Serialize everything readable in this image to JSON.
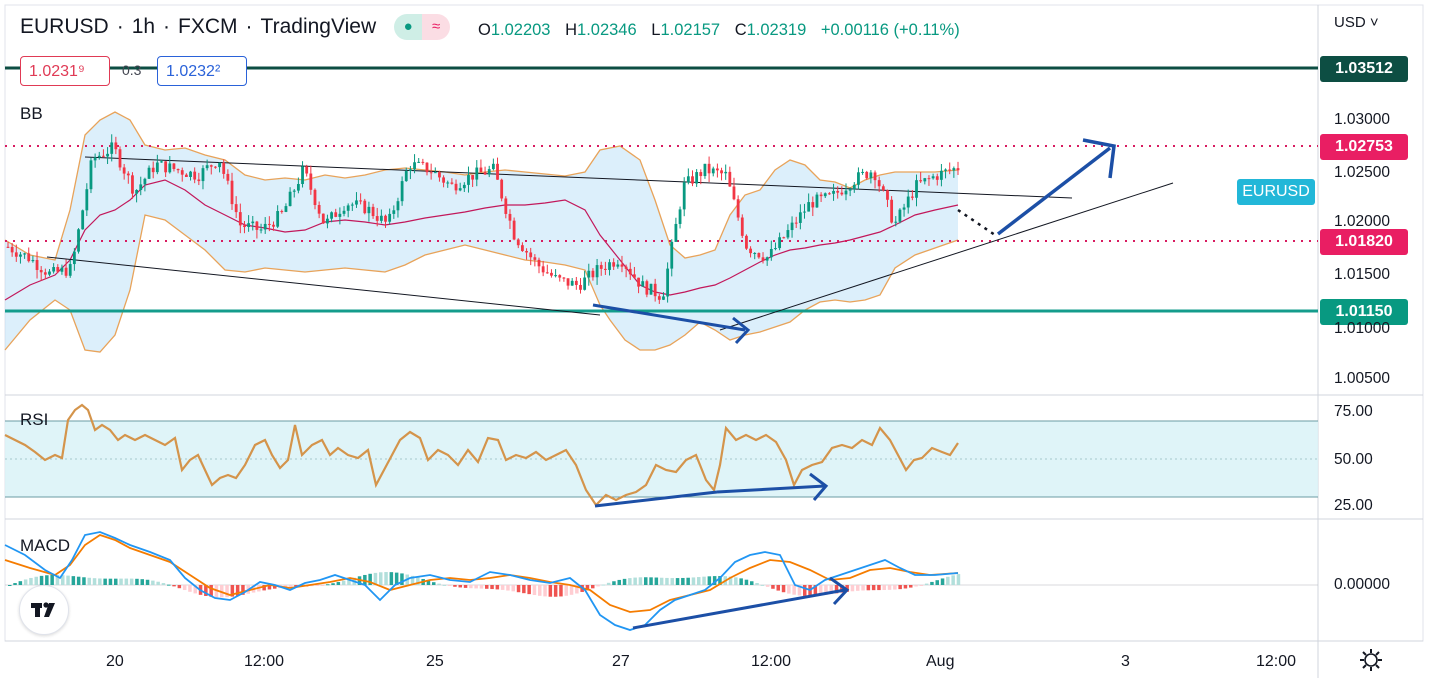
{
  "header": {
    "symbol": "EURUSD",
    "interval": "1h",
    "broker": "FXCM",
    "platform": "TradingView",
    "ohlc": {
      "o_label": "O",
      "o": "1.02203",
      "h_label": "H",
      "h": "1.02346",
      "l_label": "L",
      "l": "1.02157",
      "c_label": "C",
      "c": "1.02319",
      "change": "+0.00116 (+0.11%)"
    },
    "bid": "1.0231⁹",
    "spread": "0.3",
    "ask": "1.0232²"
  },
  "currency_button": "USD",
  "pane_labels": {
    "main": "BB",
    "rsi": "RSI",
    "macd": "MACD"
  },
  "symbol_tag": "EURUSD",
  "price_tags": {
    "top_resistance": {
      "value": "1.03512",
      "color": "#0d4e43"
    },
    "resistance": {
      "value": "1.02753",
      "color": "#e91e63"
    },
    "mid": {
      "value": "1.01820",
      "color": "#e91e63"
    },
    "support": {
      "value": "1.01150",
      "color": "#089981"
    }
  },
  "price_axis": [
    "1.03000",
    "1.02500",
    "1.02000",
    "1.01500",
    "1.01000",
    "1.00500"
  ],
  "rsi_axis": [
    "75.00",
    "50.00",
    "25.00"
  ],
  "macd_axis": [
    "0.00000"
  ],
  "time_axis": [
    "20",
    "12:00",
    "25",
    "27",
    "12:00",
    "Aug",
    "3",
    "12:00"
  ],
  "icons": {
    "settings": "gear-icon",
    "indicator_toggle": "eye-icon",
    "logo": "tradingview-logo-icon"
  },
  "chart_data": {
    "type": "line",
    "series": [
      {
        "name": "EURUSD",
        "values": [
          1.016,
          1.015,
          1.0135,
          1.014,
          1.024,
          1.025,
          1.021,
          1.0235,
          1.023,
          1.0225,
          1.024,
          1.018,
          1.0175,
          1.019,
          1.023,
          1.018,
          1.02,
          1.0195,
          1.018,
          1.0235,
          1.023,
          1.0215,
          1.0225,
          1.023,
          1.017,
          1.0145,
          1.013,
          1.0125,
          1.014,
          1.015,
          1.0125,
          1.0115,
          1.0215,
          1.023,
          1.0225,
          1.016,
          1.015,
          1.0175,
          1.02,
          1.0205,
          1.022,
          1.023,
          1.018,
          1.0215,
          1.0225,
          1.0232
        ]
      }
    ],
    "levels": [
      1.03512,
      1.02753,
      1.0182,
      1.0115
    ],
    "ylim": [
      1.003,
      1.0375
    ],
    "rsi_levels": [
      70,
      30
    ],
    "rsi_range": [
      20,
      80
    ],
    "grid": true
  }
}
